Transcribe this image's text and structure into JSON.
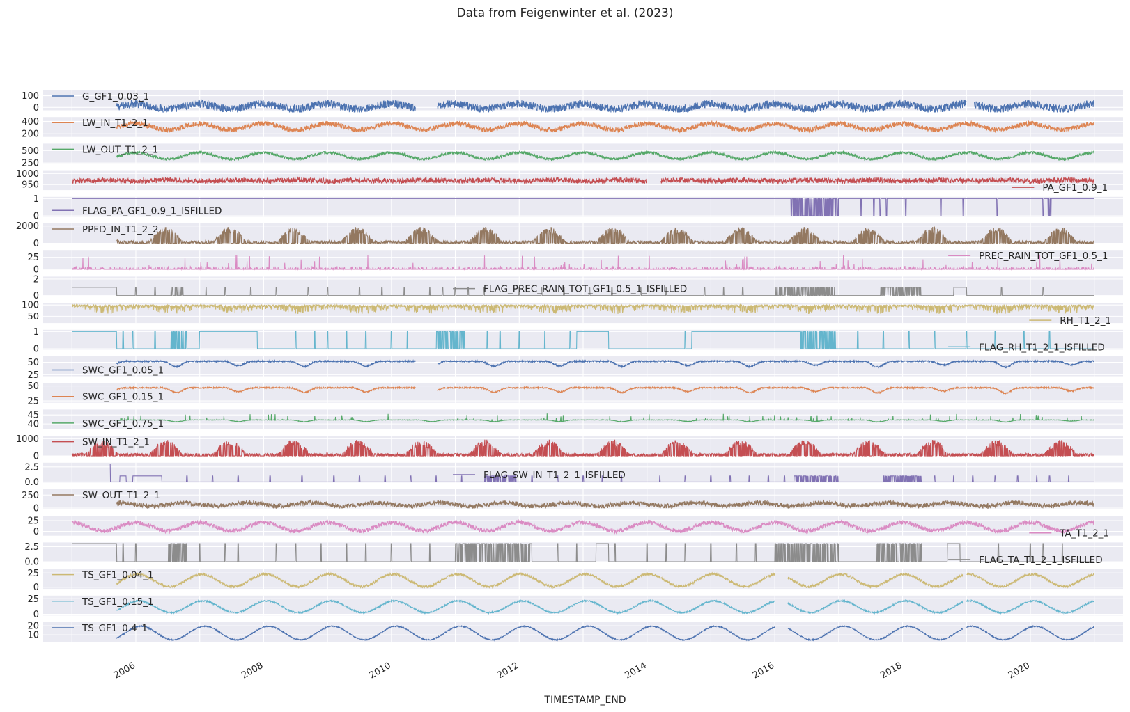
{
  "chart_data": {
    "type": "line",
    "title": "Data from Feigenwinter et al. (2023)",
    "xlabel": "TIMESTAMP_END",
    "x_range": [
      2004.55,
      2021.45
    ],
    "x_ticks": [
      {
        "value": 2006,
        "label": "2006"
      },
      {
        "value": 2008,
        "label": "2008"
      },
      {
        "value": 2010,
        "label": "2010"
      },
      {
        "value": 2012,
        "label": "2012"
      },
      {
        "value": 2014,
        "label": "2014"
      },
      {
        "value": 2016,
        "label": "2016"
      },
      {
        "value": 2018,
        "label": "2018"
      },
      {
        "value": 2020,
        "label": "2020"
      }
    ],
    "grid": true,
    "x_start": 2005.0,
    "x_end": 2021.0,
    "series": [
      {
        "name": "G_GF1_0.03_1",
        "color": "#4c72b0",
        "legend": "upper-left",
        "ylim": [
          -25,
          145
        ],
        "yticks": [
          {
            "value": 0,
            "label": "0"
          },
          {
            "value": 100,
            "label": "100"
          }
        ],
        "start": 2005.7,
        "gaps": [
          [
            2010.38,
            2010.72
          ],
          [
            2019.0,
            2019.12
          ]
        ],
        "mean": 8,
        "amp": 22,
        "noise": 34,
        "phase": 0.54
      },
      {
        "name": "LW_IN_T1_2_1",
        "color": "#dd8452",
        "legend": "upper-left",
        "ylim": [
          150,
          470
        ],
        "yticks": [
          {
            "value": 200,
            "label": "200"
          },
          {
            "value": 400,
            "label": "400"
          }
        ],
        "start": 2005.7,
        "gaps": [],
        "mean": 315,
        "amp": 50,
        "noise": 40,
        "phase": 0.55
      },
      {
        "name": "LW_OUT_T1_2_1",
        "color": "#55a868",
        "legend": "upper-left",
        "ylim": [
          240,
          640
        ],
        "yticks": [
          {
            "value": 250,
            "label": "250"
          },
          {
            "value": 500,
            "label": "500"
          }
        ],
        "start": 2005.7,
        "gaps": [],
        "mean": 395,
        "amp": 65,
        "noise": 28,
        "phase": 0.55
      },
      {
        "name": "PA_GF1_0.9_1",
        "color": "#c44e52",
        "legend": "lower-right",
        "ylim": [
          925,
          1015
        ],
        "yticks": [
          {
            "value": 950,
            "label": "950"
          },
          {
            "value": 1000,
            "label": "1000"
          }
        ],
        "start": 2005.0,
        "gaps": [
          [
            2014.0,
            2014.22
          ]
        ],
        "mean": 968,
        "amp": 2,
        "noise": 12,
        "phase": 0.1
      },
      {
        "name": "FLAG_PA_GF1_0.9_1_ISFILLED",
        "color": "#8172b3",
        "legend": "lower-left",
        "ylim": [
          -0.05,
          1.1
        ],
        "yticks": [
          {
            "value": 0,
            "label": "0"
          },
          {
            "value": 1,
            "label": "1"
          }
        ],
        "start": 2005.0,
        "gaps": [],
        "levels": [
          0,
          1
        ],
        "base": 1,
        "alt": 0,
        "switch_at": 2016.0,
        "dense": [
          [
            2016.25,
            2017.0
          ]
        ],
        "spikes": [
          2017.35,
          2017.55,
          2017.65,
          2017.75,
          2018.05,
          2018.6,
          2018.95,
          2019.48,
          2020.2,
          2020.28,
          2020.3,
          2020.32
        ]
      },
      {
        "name": "PPFD_IN_T1_2_2",
        "color": "#937860",
        "legend": "upper-left",
        "ylim": [
          0,
          2300
        ],
        "yticks": [
          {
            "value": 0,
            "label": "0"
          },
          {
            "value": 2000,
            "label": "2000"
          }
        ],
        "start": 2005.7,
        "gaps": [],
        "solar": true,
        "peak": 1900
      },
      {
        "name": "PREC_RAIN_TOT_GF1_0.5_1",
        "color": "#da8bc3",
        "legend": "upper-right",
        "ylim": [
          -1,
          40
        ],
        "yticks": [
          {
            "value": 0,
            "label": "0"
          },
          {
            "value": 25,
            "label": "25"
          }
        ],
        "start": 2005.0,
        "gaps": [],
        "rain": true
      },
      {
        "name": "FLAG_PREC_RAIN_TOT_GF1_0.5_1_ISFILLED",
        "color": "#8c8c8c",
        "legend": "center",
        "ylim": [
          -0.1,
          2.3
        ],
        "yticks": [
          {
            "value": 0,
            "label": "0"
          },
          {
            "value": 2,
            "label": "2"
          }
        ],
        "start": 2005.0,
        "gaps": [],
        "base": 0,
        "alt": 1,
        "pre": 1,
        "pre_until": 2005.7,
        "dense": [
          [
            2006.55,
            2006.75
          ],
          [
            2016.0,
            2016.95
          ],
          [
            2017.65,
            2018.3
          ]
        ],
        "spikes": [
          2006.0,
          2006.3,
          2007.1,
          2007.4,
          2007.8,
          2008.2,
          2008.7,
          2009.0,
          2009.5,
          2009.85,
          2010.2,
          2010.6,
          2010.8,
          2011.0,
          2011.2,
          2011.45,
          2012.0,
          2012.35,
          2012.7,
          2013.1,
          2013.45,
          2013.9,
          2014.3,
          2014.9,
          2015.2,
          2015.5,
          2018.9,
          2019.55,
          2020.2
        ],
        "step": [
          [
            2018.8,
            2019.0
          ]
        ]
      },
      {
        "name": "RH_T1_2_1",
        "color": "#ccb974",
        "legend": "lower-right",
        "ylim": [
          20,
          108
        ],
        "yticks": [
          {
            "value": 50,
            "label": "50"
          },
          {
            "value": 100,
            "label": "100"
          }
        ],
        "start": 2005.0,
        "gaps": [],
        "rh": true
      },
      {
        "name": "FLAG_RH_T1_2_1_ISFILLED",
        "color": "#64b5cd",
        "legend": "lower-right",
        "ylim": [
          -0.05,
          1.1
        ],
        "yticks": [
          {
            "value": 0,
            "label": "0"
          },
          {
            "value": 1,
            "label": "1"
          }
        ],
        "start": 2005.0,
        "gaps": [],
        "base": 0,
        "alt": 1,
        "pre": 1,
        "pre_until": 2005.7,
        "dense": [
          [
            2006.55,
            2006.8
          ],
          [
            2010.7,
            2011.15
          ],
          [
            2016.1,
            2016.95
          ]
        ],
        "spikes": [
          2005.8,
          2005.95,
          2006.3,
          2007.0,
          2007.3,
          2007.6,
          2008.5,
          2008.8,
          2009.0,
          2009.3,
          2009.6,
          2010.0,
          2010.25,
          2011.5,
          2011.7,
          2012.0,
          2012.4,
          2012.8,
          2013.1,
          2014.6,
          2014.9,
          2015.2,
          2015.4,
          2015.6,
          2017.3,
          2017.7,
          2018.1,
          2018.5,
          2019.0,
          2019.45,
          2019.9,
          2020.3
        ],
        "step": [
          [
            2007.0,
            2007.9
          ],
          [
            2012.9,
            2013.4
          ],
          [
            2014.7,
            2016.4
          ]
        ]
      },
      {
        "name": "SWC_GF1_0.05_1",
        "color": "#4c72b0",
        "legend": "lower-left",
        "ylim": [
          22,
          62
        ],
        "yticks": [
          {
            "value": 25,
            "label": "25"
          },
          {
            "value": 50,
            "label": "50"
          }
        ],
        "start": 2005.7,
        "gaps": [
          [
            2010.38,
            2010.72
          ]
        ],
        "swc": true,
        "mean": 52,
        "dip": 16
      },
      {
        "name": "SWC_GF1_0.15_1",
        "color": "#dd8452",
        "legend": "lower-left",
        "ylim": [
          22,
          55
        ],
        "yticks": [
          {
            "value": 25,
            "label": "25"
          },
          {
            "value": 50,
            "label": "50"
          }
        ],
        "start": 2005.7,
        "gaps": [
          [
            2010.38,
            2010.72
          ]
        ],
        "swc": true,
        "mean": 47,
        "dip": 12
      },
      {
        "name": "SWC_GF1_0.75_1",
        "color": "#55a868",
        "legend": "lower-left",
        "ylim": [
          37,
          48
        ],
        "yticks": [
          {
            "value": 40,
            "label": "40"
          },
          {
            "value": 45,
            "label": "45"
          }
        ],
        "start": 2005.7,
        "gaps": [
          [
            2016.0,
            2016.05
          ]
        ],
        "swc": true,
        "mean": 42.2,
        "dip": 1.5,
        "up": 3.5
      },
      {
        "name": "SW_IN_T1_2_1",
        "color": "#c44e52",
        "legend": "upper-left",
        "ylim": [
          0,
          1150
        ],
        "yticks": [
          {
            "value": 0,
            "label": "0"
          },
          {
            "value": 1000,
            "label": "1000"
          }
        ],
        "start": 2005.0,
        "gaps": [],
        "solar": true,
        "peak": 950
      },
      {
        "name": "FLAG_SW_IN_T1_2_1_ISFILLED",
        "color": "#8172b3",
        "legend": "center",
        "ylim": [
          -0.1,
          3.2
        ],
        "yticks": [
          {
            "value": 0.0,
            "label": "0.0"
          },
          {
            "value": 2.5,
            "label": "2.5"
          }
        ],
        "start": 2005.0,
        "gaps": [],
        "base": 0,
        "alt": 1,
        "pre": 3,
        "pre_until": 2005.6,
        "dense": [
          [
            2011.45,
            2011.95
          ],
          [
            2016.3,
            2017.0
          ],
          [
            2017.7,
            2018.3
          ]
        ],
        "spikes": [
          2006.4,
          2006.8,
          2007.2,
          2007.6,
          2008.1,
          2008.6,
          2009.1,
          2009.5,
          2009.9,
          2010.3,
          2010.7,
          2011.1,
          2012.2,
          2012.6,
          2013.0,
          2013.3,
          2013.6,
          2014.2,
          2014.6,
          2015.0,
          2015.3,
          2015.6,
          2015.9,
          2016.15,
          2018.5,
          2018.8,
          2019.1,
          2019.45,
          2019.8,
          2020.1,
          2020.3,
          2020.6
        ],
        "step": [
          [
            2005.75,
            2005.85
          ],
          [
            2005.95,
            2006.4
          ]
        ]
      },
      {
        "name": "SW_OUT_T1_2_1",
        "color": "#937860",
        "legend": "upper-left",
        "ylim": [
          -20,
          360
        ],
        "yticks": [
          {
            "value": 0,
            "label": "0"
          },
          {
            "value": 250,
            "label": "250"
          }
        ],
        "start": 2005.7,
        "gaps": [],
        "mean": 70,
        "amp": 30,
        "noise": 45,
        "phase": 0.3
      },
      {
        "name": "TA_T1_2_1",
        "color": "#da8bc3",
        "legend": "lower-right",
        "ylim": [
          -10,
          36
        ],
        "yticks": [
          {
            "value": 0,
            "label": "0"
          },
          {
            "value": 25,
            "label": "25"
          }
        ],
        "start": 2005.0,
        "gaps": [],
        "mean": 11,
        "amp": 10,
        "noise": 5,
        "phase": 0.55
      },
      {
        "name": "FLAG_TA_T1_2_1_ISFILLED",
        "color": "#8c8c8c",
        "legend": "lower-right",
        "ylim": [
          -0.1,
          3.2
        ],
        "yticks": [
          {
            "value": 0.0,
            "label": "0.0"
          },
          {
            "value": 2.5,
            "label": "2.5"
          }
        ],
        "start": 2005.0,
        "gaps": [],
        "base": 0,
        "alt": 3,
        "pre": 3,
        "pre_until": 2005.7,
        "dense": [
          [
            2006.5,
            2006.8
          ],
          [
            2011.0,
            2012.2
          ],
          [
            2016.0,
            2017.0
          ],
          [
            2017.6,
            2018.3
          ]
        ],
        "spikes": [
          2005.8,
          2006.0,
          2007.0,
          2007.4,
          2007.6,
          2008.2,
          2008.5,
          2008.9,
          2009.3,
          2009.6,
          2010.0,
          2010.3,
          2010.6,
          2012.6,
          2012.9,
          2013.5,
          2014.0,
          2014.3,
          2014.6,
          2015.0,
          2015.4,
          2015.7,
          2018.8,
          2019.5,
          2020.0,
          2020.2,
          2020.5
        ],
        "step": [
          [
            2013.2,
            2013.4
          ],
          [
            2018.7,
            2018.9
          ]
        ]
      },
      {
        "name": "TS_GF1_0.04_1",
        "color": "#ccb974",
        "legend": "upper-left",
        "ylim": [
          -3,
          32
        ],
        "yticks": [
          {
            "value": 0,
            "label": "0"
          },
          {
            "value": 25,
            "label": "25"
          }
        ],
        "start": 2005.7,
        "gaps": [
          [
            2016.0,
            2016.2
          ],
          [
            2018.95,
            2019.0
          ]
        ],
        "mean": 12,
        "amp": 11,
        "noise": 2.2,
        "phase": 0.58
      },
      {
        "name": "TS_GF1_0.15_1",
        "color": "#64b5cd",
        "legend": "upper-left",
        "ylim": [
          -2,
          30
        ],
        "yticks": [
          {
            "value": 0,
            "label": "0"
          },
          {
            "value": 25,
            "label": "25"
          }
        ],
        "start": 2005.7,
        "gaps": [
          [
            2016.0,
            2016.2
          ],
          [
            2018.95,
            2019.0
          ]
        ],
        "mean": 12,
        "amp": 9.5,
        "noise": 1.2,
        "phase": 0.6
      },
      {
        "name": "TS_GF1_0.4_1",
        "color": "#4c72b0",
        "legend": "upper-left",
        "ylim": [
          2,
          24
        ],
        "yticks": [
          {
            "value": 10,
            "label": "10"
          },
          {
            "value": 20,
            "label": "20"
          }
        ],
        "start": 2005.7,
        "gaps": [
          [
            2016.0,
            2016.2
          ],
          [
            2018.95,
            2019.0
          ]
        ],
        "mean": 12,
        "amp": 7.5,
        "noise": 0.6,
        "phase": 0.63
      }
    ]
  }
}
